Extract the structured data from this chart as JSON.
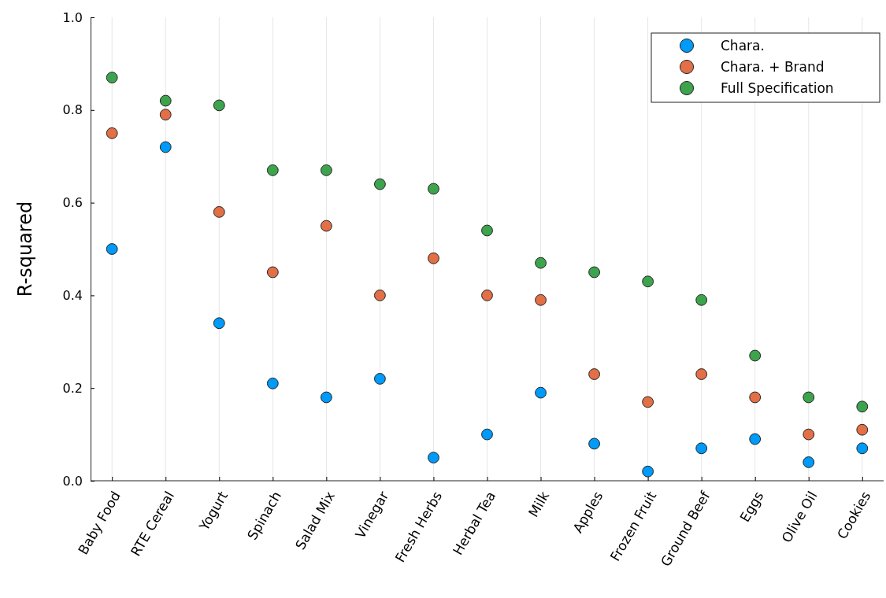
{
  "chart_data": {
    "type": "scatter",
    "ylabel": "R-squared",
    "categories": [
      "Baby Food",
      "RTE Cereal",
      "Yogurt",
      "Spinach",
      "Salad Mix",
      "Vinegar",
      "Fresh Herbs",
      "Herbal Tea",
      "Milk",
      "Apples",
      "Frozen Fruit",
      "Ground Beef",
      "Eggs",
      "Olive Oil",
      "Cookies"
    ],
    "series": [
      {
        "name": "Chara.",
        "color": "#009af9",
        "values": [
          0.5,
          0.72,
          0.34,
          0.21,
          0.18,
          0.22,
          0.05,
          0.1,
          0.19,
          0.08,
          0.02,
          0.07,
          0.09,
          0.04,
          0.07
        ]
      },
      {
        "name": "Chara. + Brand",
        "color": "#e26f46",
        "values": [
          0.75,
          0.79,
          0.58,
          0.45,
          0.55,
          0.4,
          0.48,
          0.4,
          0.39,
          0.23,
          0.17,
          0.23,
          0.18,
          0.1,
          0.11
        ]
      },
      {
        "name": "Full Specification",
        "color": "#3da44d",
        "values": [
          0.87,
          0.82,
          0.81,
          0.67,
          0.67,
          0.64,
          0.63,
          0.54,
          0.47,
          0.45,
          0.43,
          0.39,
          0.27,
          0.18,
          0.16
        ]
      }
    ],
    "ylim": [
      0,
      1
    ],
    "yticks": [
      {
        "value": 0,
        "label": "0.0"
      },
      {
        "value": 0.2,
        "label": "0.2"
      },
      {
        "value": 0.4,
        "label": "0.4"
      },
      {
        "value": 0.6,
        "label": "0.6"
      },
      {
        "value": 0.8,
        "label": "0.8"
      },
      {
        "value": 1,
        "label": "1.0"
      }
    ],
    "grid": "x",
    "legend": "top right",
    "marker": "circle"
  }
}
